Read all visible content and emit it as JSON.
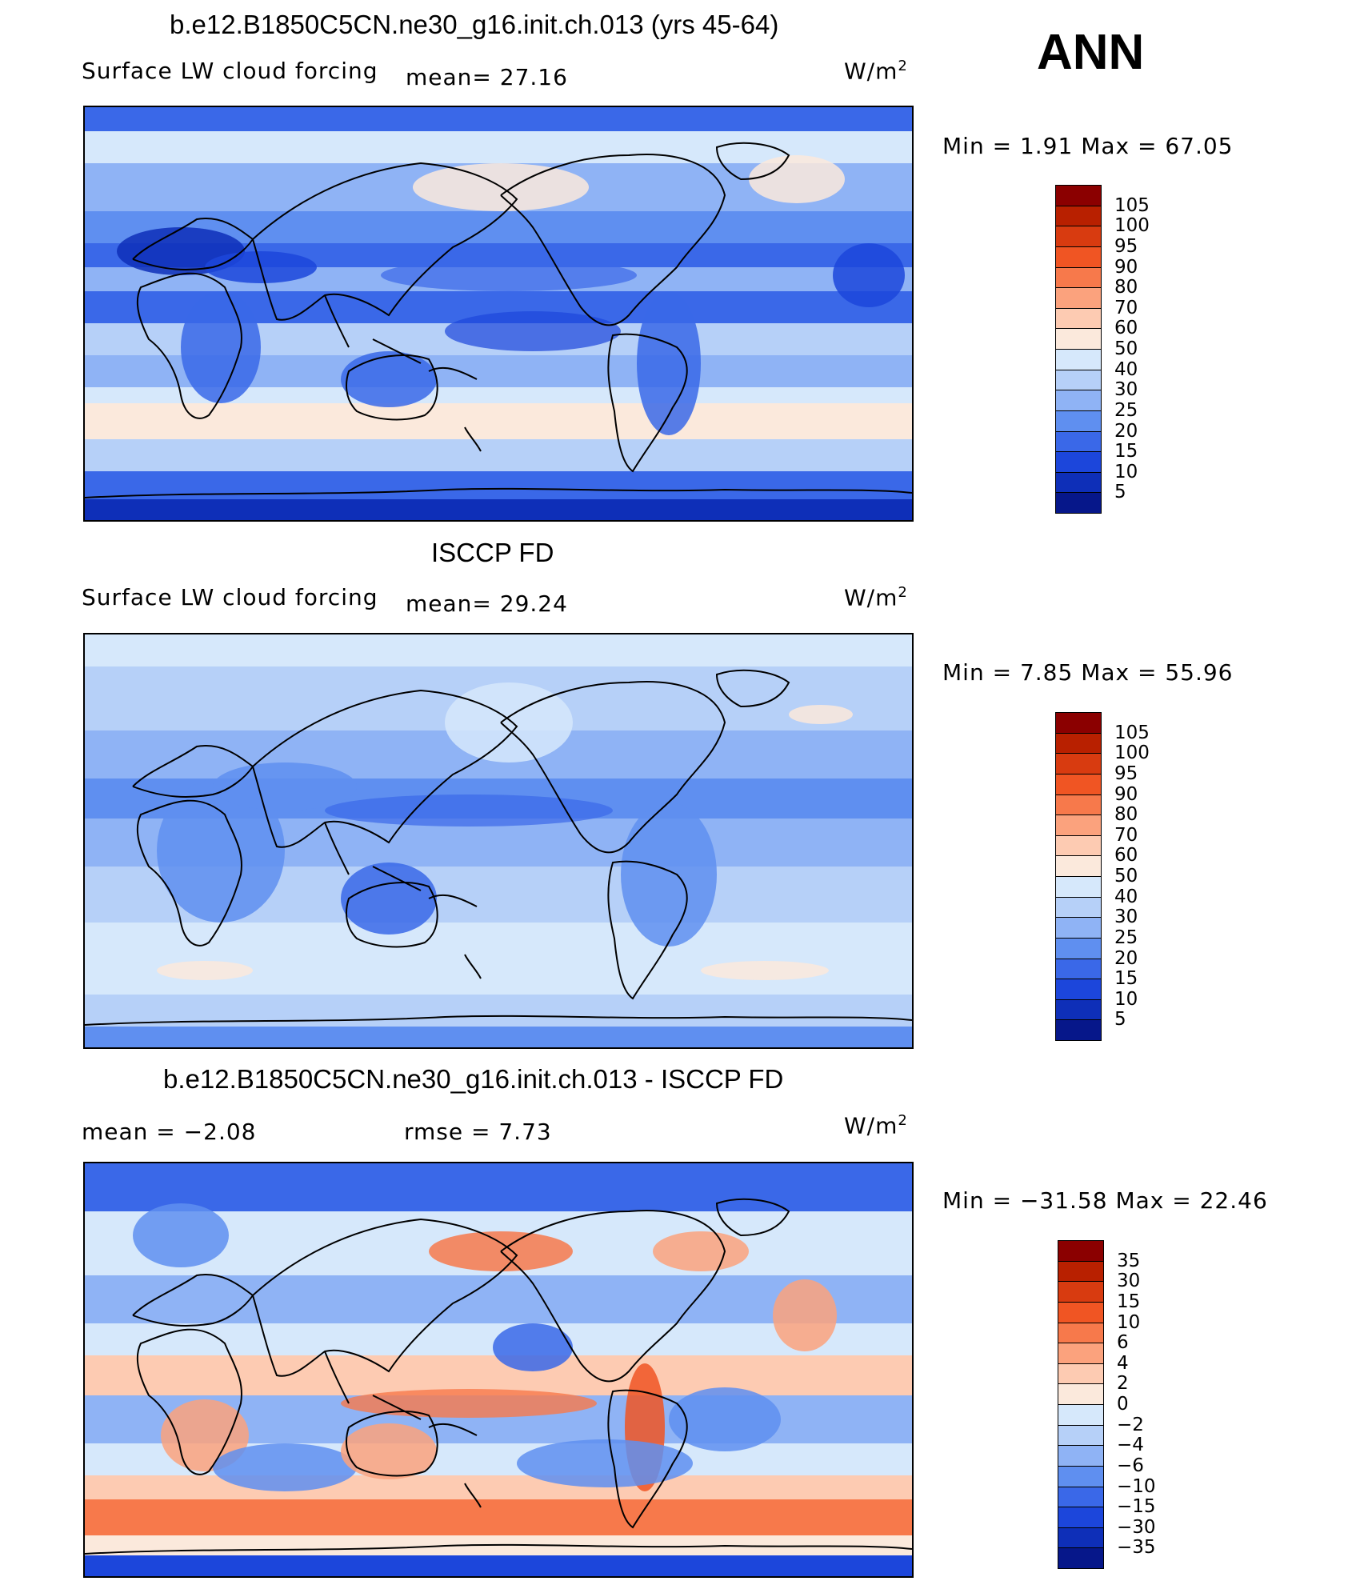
{
  "season": "ANN",
  "panels": [
    {
      "id": "model",
      "title": "b.e12.B1850C5CN.ne30_g16.init.ch.013 (yrs 45-64)",
      "left_label": "Surface LW cloud forcing",
      "mean_text": "mean=   27.16",
      "units_base": "W/m",
      "units_exp": "2",
      "minmax": "Min =    1.91  Max =   67.05",
      "colorbar_labels": [
        "105",
        "100",
        "95",
        "90",
        "80",
        "70",
        "60",
        "50",
        "40",
        "30",
        "25",
        "20",
        "15",
        "10",
        "5"
      ],
      "colors": [
        "#8b0000",
        "#b82000",
        "#d83b10",
        "#f05523",
        "#f7794b",
        "#fba27d",
        "#fdcbb2",
        "#fbe9dc",
        "#d6e8fb",
        "#b6d0f8",
        "#8fb3f5",
        "#5f8ff0",
        "#3a68e8",
        "#1c46db",
        "#0e2fb8",
        "#06178a"
      ]
    },
    {
      "id": "obs",
      "title": "ISCCP FD",
      "left_label": "Surface LW cloud forcing",
      "mean_text": "mean=   29.24",
      "units_base": "W/m",
      "units_exp": "2",
      "minmax": "Min =    7.85  Max =   55.96",
      "colorbar_labels": [
        "105",
        "100",
        "95",
        "90",
        "80",
        "70",
        "60",
        "50",
        "40",
        "30",
        "25",
        "20",
        "15",
        "10",
        "5"
      ],
      "colors": [
        "#8b0000",
        "#b82000",
        "#d83b10",
        "#f05523",
        "#f7794b",
        "#fba27d",
        "#fdcbb2",
        "#fbe9dc",
        "#d6e8fb",
        "#b6d0f8",
        "#8fb3f5",
        "#5f8ff0",
        "#3a68e8",
        "#1c46db",
        "#0e2fb8",
        "#06178a"
      ]
    },
    {
      "id": "diff",
      "title": "b.e12.B1850C5CN.ne30_g16.init.ch.013 - ISCCP FD",
      "left_label": "mean =   −2.08",
      "mean_text": "rmse =    7.73",
      "units_base": "W/m",
      "units_exp": "2",
      "minmax": "Min = −31.58  Max =   22.46",
      "colorbar_labels": [
        "35",
        "30",
        "15",
        "10",
        "6",
        "4",
        "2",
        "0",
        "−2",
        "−4",
        "−6",
        "−10",
        "−15",
        "−30",
        "−35"
      ],
      "colors": [
        "#8b0000",
        "#b82000",
        "#d83b10",
        "#f05523",
        "#f7794b",
        "#fba27d",
        "#fdcbb2",
        "#fbe9dc",
        "#d6e8fb",
        "#b6d0f8",
        "#8fb3f5",
        "#5f8ff0",
        "#3a68e8",
        "#1c46db",
        "#0e2fb8",
        "#06178a"
      ]
    }
  ],
  "chart_data": [
    {
      "type": "heatmap",
      "title": "b.e12.B1850C5CN.ne30_g16.init.ch.013 (yrs 45-64)",
      "variable": "Surface LW cloud forcing",
      "units": "W/m2",
      "mean": 27.16,
      "min": 1.91,
      "max": 67.05,
      "contour_levels": [
        5,
        10,
        15,
        20,
        25,
        30,
        40,
        50,
        60,
        70,
        80,
        90,
        95,
        100,
        105
      ]
    },
    {
      "type": "heatmap",
      "title": "ISCCP FD",
      "variable": "Surface LW cloud forcing",
      "units": "W/m2",
      "mean": 29.24,
      "min": 7.85,
      "max": 55.96,
      "contour_levels": [
        5,
        10,
        15,
        20,
        25,
        30,
        40,
        50,
        60,
        70,
        80,
        90,
        95,
        100,
        105
      ]
    },
    {
      "type": "heatmap",
      "title": "b.e12.B1850C5CN.ne30_g16.init.ch.013 - ISCCP FD",
      "units": "W/m2",
      "mean": -2.08,
      "rmse": 7.73,
      "min": -31.58,
      "max": 22.46,
      "contour_levels": [
        -35,
        -30,
        -15,
        -10,
        -6,
        -4,
        -2,
        0,
        2,
        4,
        6,
        10,
        15,
        30,
        35
      ]
    }
  ]
}
